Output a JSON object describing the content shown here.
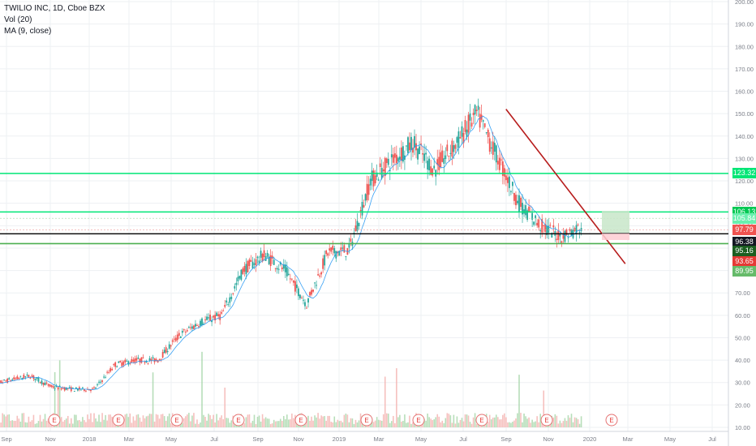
{
  "legend": {
    "title": "TWILIO INC, 1D, Cboe BZX",
    "volume": "Vol (20)",
    "ma": "MA (9, close)"
  },
  "chart_data": {
    "type": "candlestick",
    "y_axis_ticks": [
      "10.00",
      "20.00",
      "30.00",
      "40.00",
      "50.00",
      "60.00",
      "70.00",
      "80.00",
      "90.00",
      "100.00",
      "110.00",
      "120.00",
      "130.00",
      "140.00",
      "150.00",
      "160.00",
      "170.00",
      "180.00",
      "190.00",
      "200.00"
    ],
    "ylim": [
      10,
      200
    ],
    "x_axis_ticks": [
      "Sep",
      "Nov",
      "2018",
      "Mar",
      "May",
      "Jul",
      "Sep",
      "Nov",
      "2019",
      "Mar",
      "May",
      "Jul",
      "Sep",
      "Nov",
      "2020",
      "Mar",
      "May",
      "Jul"
    ],
    "price_path": [
      [
        "Aug 2017",
        29
      ],
      [
        "Sep 2017",
        31
      ],
      [
        "Oct 2017",
        33
      ],
      [
        "Nov 2017",
        28
      ],
      [
        "Dec 2017",
        27
      ],
      [
        "Jan 2018",
        27
      ],
      [
        "Feb 2018",
        38
      ],
      [
        "Mar 2018",
        40
      ],
      [
        "Apr 2018",
        40
      ],
      [
        "May 2018",
        51
      ],
      [
        "Jun 2018",
        57
      ],
      [
        "Jul 2018",
        60
      ],
      [
        "Aug 2018",
        80
      ],
      [
        "Sep 2018",
        87
      ],
      [
        "Oct 2018",
        80
      ],
      [
        "Nov 2018",
        65
      ],
      [
        "Dec 2018",
        88
      ],
      [
        "Jan 2019",
        89
      ],
      [
        "Feb 2019",
        120
      ],
      [
        "Mar 2019",
        129
      ],
      [
        "Apr 2019",
        137
      ],
      [
        "May 2019",
        125
      ],
      [
        "Jun 2019",
        136
      ],
      [
        "Jul 2019",
        150
      ],
      [
        "Aug 2019",
        130
      ],
      [
        "Sep 2019",
        110
      ],
      [
        "Oct 2019",
        100
      ],
      [
        "Nov 2019",
        95
      ],
      [
        "Dec 2019",
        100
      ]
    ],
    "horizontal_levels": [
      {
        "price": 123.32,
        "label": "123.32",
        "color": "#00e676"
      },
      {
        "price": 106.13,
        "label": "106.13",
        "color": "#00e676"
      },
      {
        "price": 96.38,
        "label": "96.38",
        "color": "#000000"
      },
      {
        "price": 92.0,
        "color": "#4caf50"
      }
    ],
    "trendline": {
      "from": [
        "Aug 2019",
        152
      ],
      "to": [
        "Jan 2020",
        83
      ],
      "color": "#b71c1c"
    },
    "price_labels": [
      {
        "text": "123.32",
        "bg": "#00e676",
        "price": 123.32
      },
      {
        "text": "106.13",
        "bg": "#00c853",
        "price": 106.13
      },
      {
        "text": "105.84",
        "bg": "#69f0ae",
        "price": 103.3
      },
      {
        "text": "97.79",
        "bg": "#ef5350",
        "price": 98.2
      },
      {
        "text": "96.38",
        "bg": "#131722",
        "price": 92.6
      },
      {
        "text": "95.16",
        "bg": "#1b5e20",
        "price": 88.7
      },
      {
        "text": "93.65",
        "bg": "#e53935",
        "price": 84.0
      },
      {
        "text": "89.95",
        "bg": "#66bb6a",
        "price": 79.6
      }
    ],
    "earnings_marker": "E",
    "earnings_count": 10,
    "series": [
      {
        "name": "Vol (20)"
      },
      {
        "name": "MA (9, close)"
      }
    ]
  },
  "colors": {
    "up": "#26a69a",
    "down": "#ef5350",
    "ma": "#2196f3",
    "grid": "#eef0f3",
    "axis_text": "#7a7e88"
  }
}
